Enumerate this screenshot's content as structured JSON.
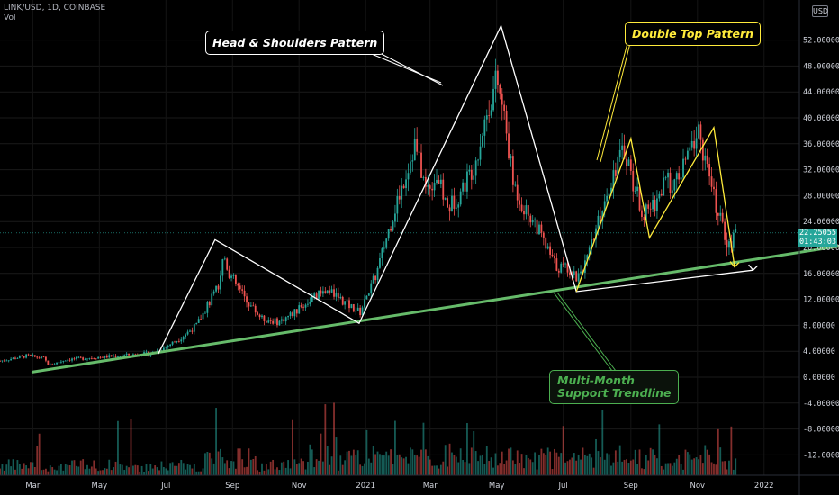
{
  "header": {
    "symbol_line": "LINK/USD, 1D, COINBASE",
    "volume_label": "Vol",
    "currency": "USD"
  },
  "last_price": {
    "value": "22.25055",
    "countdown": "01:43:03",
    "color": "#26a69a"
  },
  "callouts": {
    "head_shoulders": "Head & Shoulders Pattern",
    "double_top": "Double Top Pattern",
    "support_line1": "Multi-Month",
    "support_line2": "Support Trendline"
  },
  "colors": {
    "up": "#26a69a",
    "down": "#ef5350",
    "trendline": "#66bb6a",
    "pattern_white": "#ffffff",
    "pattern_yellow": "#ffeb3b"
  },
  "chart_data": {
    "type": "candlestick",
    "ylim": [
      -14,
      56
    ],
    "yticks": [
      {
        "v": 52,
        "label": "52.00000"
      },
      {
        "v": 48,
        "label": "48.00000"
      },
      {
        "v": 44,
        "label": "44.00000"
      },
      {
        "v": 40,
        "label": "40.00000"
      },
      {
        "v": 36,
        "label": "36.00000"
      },
      {
        "v": 32,
        "label": "32.00000"
      },
      {
        "v": 28,
        "label": "28.00000"
      },
      {
        "v": 24,
        "label": "24.00000"
      },
      {
        "v": 20,
        "label": "20.00000"
      },
      {
        "v": 16,
        "label": "16.00000"
      },
      {
        "v": 12,
        "label": "12.00000"
      },
      {
        "v": 8,
        "label": "8.00000"
      },
      {
        "v": 4,
        "label": "4.00000"
      },
      {
        "v": 0,
        "label": "0.00000"
      },
      {
        "v": -4,
        "label": "-4.00000"
      },
      {
        "v": -8,
        "label": "-8.00000"
      },
      {
        "v": -12,
        "label": "-12.00000"
      }
    ],
    "x_range_days": [
      0,
      730
    ],
    "xticks": [
      {
        "d": 30,
        "label": "Mar"
      },
      {
        "d": 91,
        "label": "May"
      },
      {
        "d": 152,
        "label": "Jul"
      },
      {
        "d": 213,
        "label": "Sep"
      },
      {
        "d": 274,
        "label": "Nov"
      },
      {
        "d": 335,
        "label": "2021"
      },
      {
        "d": 394,
        "label": "Mar"
      },
      {
        "d": 455,
        "label": "May"
      },
      {
        "d": 516,
        "label": "Jul"
      },
      {
        "d": 578,
        "label": "Sep"
      },
      {
        "d": 639,
        "label": "Nov"
      },
      {
        "d": 700,
        "label": "2022"
      }
    ],
    "price_path": [
      [
        0,
        2.5
      ],
      [
        25,
        3.3
      ],
      [
        40,
        2.9
      ],
      [
        45,
        1.8
      ],
      [
        60,
        2.7
      ],
      [
        100,
        3.2
      ],
      [
        140,
        3.7
      ],
      [
        150,
        4.5
      ],
      [
        165,
        6
      ],
      [
        180,
        8
      ],
      [
        200,
        14
      ],
      [
        205,
        19
      ],
      [
        210,
        16
      ],
      [
        225,
        12
      ],
      [
        240,
        9
      ],
      [
        255,
        8.5
      ],
      [
        270,
        10
      ],
      [
        285,
        12
      ],
      [
        300,
        13.5
      ],
      [
        320,
        11
      ],
      [
        330,
        10
      ],
      [
        345,
        16
      ],
      [
        360,
        25
      ],
      [
        373,
        32
      ],
      [
        380,
        36
      ],
      [
        390,
        29
      ],
      [
        400,
        31
      ],
      [
        410,
        26
      ],
      [
        420,
        28
      ],
      [
        435,
        33
      ],
      [
        445,
        40
      ],
      [
        455,
        46
      ],
      [
        462,
        40
      ],
      [
        470,
        30
      ],
      [
        480,
        26
      ],
      [
        490,
        24
      ],
      [
        500,
        20
      ],
      [
        510,
        17
      ],
      [
        520,
        17
      ],
      [
        528,
        15.5
      ],
      [
        538,
        18
      ],
      [
        545,
        22
      ],
      [
        555,
        28
      ],
      [
        565,
        33
      ],
      [
        573,
        35
      ],
      [
        580,
        30
      ],
      [
        590,
        25
      ],
      [
        600,
        27
      ],
      [
        610,
        30
      ],
      [
        620,
        30
      ],
      [
        630,
        34
      ],
      [
        640,
        38
      ],
      [
        648,
        32
      ],
      [
        655,
        27
      ],
      [
        662,
        23
      ],
      [
        668,
        20
      ],
      [
        675,
        22.25
      ]
    ],
    "trendlines": [
      {
        "name": "support",
        "from": [
          30,
          0.8
        ],
        "to": [
          780,
          20.5
        ]
      }
    ],
    "patterns": {
      "head_and_shoulders": [
        [
          145,
          3.6
        ],
        [
          197,
          21.2
        ],
        [
          329,
          8.3
        ],
        [
          459,
          54.2
        ],
        [
          528,
          13.2
        ],
        [
          690,
          16.5
        ]
      ],
      "double_top": [
        [
          528,
          13.2
        ],
        [
          578,
          36.8
        ],
        [
          595,
          21.5
        ],
        [
          654,
          38.5
        ],
        [
          673,
          17
        ]
      ]
    },
    "title": "",
    "xlabel": "",
    "ylabel": ""
  }
}
